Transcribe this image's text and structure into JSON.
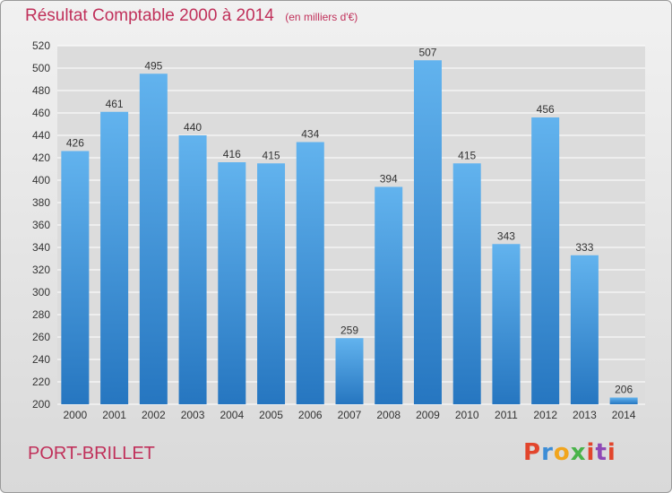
{
  "header": {
    "title": "Résultat Comptable 2000 à 2014",
    "subtitle": "(en milliers d'€)"
  },
  "footer": {
    "city": "PORT-BRILLET",
    "logo": {
      "text": "Proxiti",
      "colors": [
        "#e2452c",
        "#3d8dd6",
        "#f1a51d",
        "#49b34a",
        "#e2452c",
        "#8f48b5",
        "#e2452c"
      ]
    }
  },
  "colors": {
    "title": "#c0305a",
    "bar_top": "#62b3ee",
    "bar_bottom": "#2676c0",
    "grid": "#ffffff"
  },
  "chart_data": {
    "type": "bar",
    "categories": [
      "2000",
      "2001",
      "2002",
      "2003",
      "2004",
      "2005",
      "2006",
      "2007",
      "2008",
      "2009",
      "2010",
      "2011",
      "2012",
      "2013",
      "2014"
    ],
    "values": [
      426,
      461,
      495,
      440,
      416,
      415,
      434,
      259,
      394,
      507,
      415,
      343,
      456,
      333,
      206
    ],
    "ylim": [
      200,
      520
    ],
    "yticks": [
      200,
      220,
      240,
      260,
      280,
      300,
      320,
      340,
      360,
      380,
      400,
      420,
      440,
      460,
      480,
      500,
      520
    ],
    "grid": true,
    "data_labels": true
  }
}
